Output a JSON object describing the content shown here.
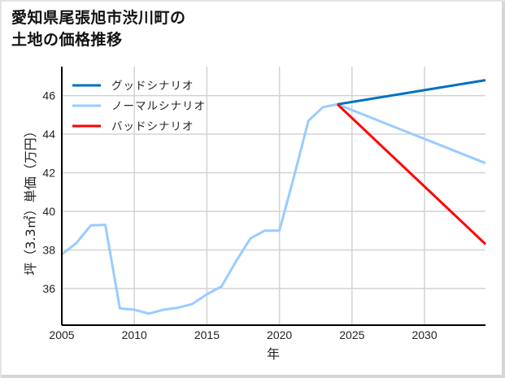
{
  "title_lines": [
    "愛知県尾張旭市渋川町の",
    "土地の価格推移"
  ],
  "chart_data": {
    "type": "line",
    "title": "愛知県尾張旭市渋川町の土地の価格推移",
    "xlabel": "年",
    "ylabel": "坪（3.3㎡）単価（万円）",
    "xlim": [
      2005,
      2034.2
    ],
    "ylim": [
      34.1,
      47.5
    ],
    "xticks": [
      2005,
      2010,
      2015,
      2020,
      2025,
      2030
    ],
    "yticks": [
      36,
      38,
      40,
      42,
      44,
      46
    ],
    "grid": true,
    "legend_position": "upper left",
    "series": [
      {
        "name": "グッドシナリオ",
        "color": "#0070c0",
        "x": [
          2024,
          2034.2
        ],
        "y": [
          45.55,
          46.8
        ]
      },
      {
        "name": "ノーマルシナリオ",
        "color": "#99ccff",
        "x": [
          2005,
          2006,
          2007,
          2008,
          2009,
          2010,
          2011,
          2012,
          2013,
          2014,
          2015,
          2016,
          2017,
          2018,
          2019,
          2020,
          2021,
          2022,
          2023,
          2024,
          2034.2
        ],
        "y": [
          37.77,
          38.35,
          39.27,
          39.3,
          34.97,
          34.9,
          34.7,
          34.9,
          35.0,
          35.2,
          35.7,
          36.1,
          37.4,
          38.6,
          39.0,
          39.0,
          41.8,
          44.7,
          45.4,
          45.55,
          42.5
        ]
      },
      {
        "name": "バッドシナリオ",
        "color": "#ff0000",
        "x": [
          2024,
          2034.2
        ],
        "y": [
          45.55,
          38.3
        ]
      }
    ]
  },
  "colors": {
    "grid": "#d3d3d3",
    "axis": "#000000",
    "frame": "#d6d6d6"
  }
}
